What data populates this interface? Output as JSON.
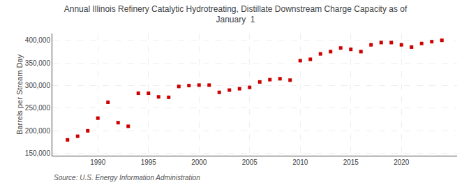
{
  "chart_data": {
    "type": "scatter",
    "title": "Annual Illinois Refinery Catalytic Hydrotreating, Distillate Downstream Charge Capacity as of\nJanuary  1",
    "ylabel": "Barrels per Stream Day",
    "annotations": [
      "Source: U.S. Energy Information Administration"
    ],
    "color": "#cc0000",
    "marker": "square",
    "x": [
      1987,
      1988,
      1989,
      1990,
      1991,
      1992,
      1993,
      1994,
      1995,
      1996,
      1997,
      1998,
      1999,
      2000,
      2001,
      2002,
      2003,
      2004,
      2005,
      2006,
      2007,
      2008,
      2009,
      2010,
      2011,
      2012,
      2013,
      2014,
      2015,
      2016,
      2017,
      2018,
      2019,
      2020,
      2021,
      2022,
      2023,
      2024
    ],
    "values": [
      180000,
      188000,
      200000,
      228000,
      263000,
      218000,
      210000,
      283000,
      283000,
      275000,
      274000,
      298000,
      300000,
      301000,
      301000,
      285000,
      290000,
      293000,
      296000,
      308000,
      313000,
      315000,
      312000,
      355000,
      358000,
      370000,
      375000,
      383000,
      380000,
      375000,
      390000,
      395000,
      395000,
      390000,
      385000,
      393000,
      397000,
      400000
    ],
    "xlim": [
      1985.5,
      2025.5
    ],
    "ylim": [
      145000,
      415000
    ],
    "xticks": [
      1990,
      1995,
      2000,
      2005,
      2010,
      2015,
      2020
    ],
    "yticks": [
      {
        "value": 150000,
        "label": "150,000"
      },
      {
        "value": 200000,
        "label": "200,000"
      },
      {
        "value": 250000,
        "label": "250,000"
      },
      {
        "value": 300000,
        "label": "300,000"
      },
      {
        "value": 350000,
        "label": "350,000"
      },
      {
        "value": 400000,
        "label": "400,000"
      }
    ],
    "grid": true
  }
}
